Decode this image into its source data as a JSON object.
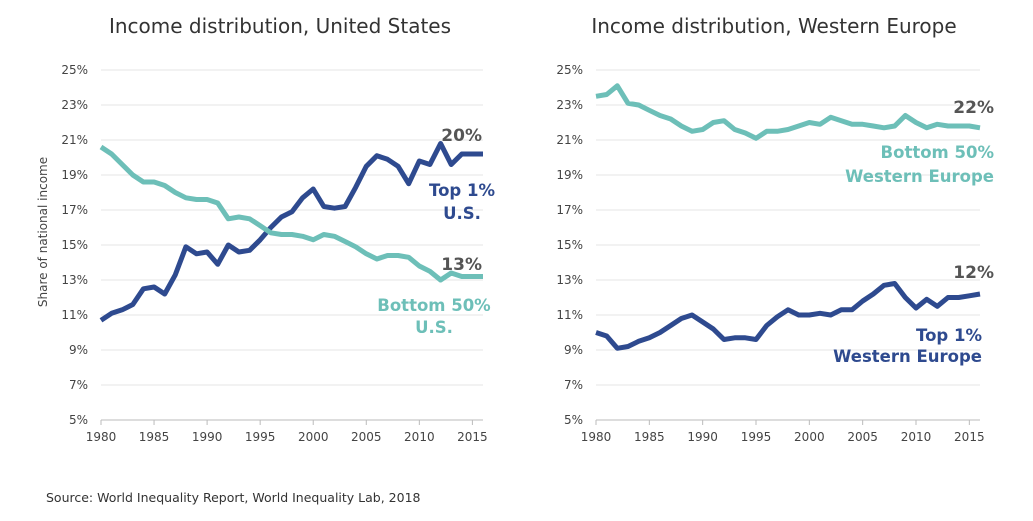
{
  "source": "Source: World Inequality Report, World Inequality Lab, 2018",
  "colors": {
    "top1": "#2e4a8f",
    "bottom50": "#6dbfb8"
  },
  "chart_data": [
    {
      "type": "line",
      "title": "Income distribution, United States",
      "ylabel": "Share of national income",
      "xlabel": "",
      "xlim": [
        1980,
        2016
      ],
      "ylim": [
        5,
        25
      ],
      "xticks": [
        "1980",
        "1985",
        "1990",
        "1995",
        "2000",
        "2005",
        "2010",
        "2015"
      ],
      "yticks": [
        "5%",
        "7%",
        "9%",
        "11%",
        "13%",
        "15%",
        "17%",
        "19%",
        "21%",
        "23%",
        "25%"
      ],
      "x": [
        1980,
        1981,
        1982,
        1983,
        1984,
        1985,
        1986,
        1987,
        1988,
        1989,
        1990,
        1991,
        1992,
        1993,
        1994,
        1995,
        1996,
        1997,
        1998,
        1999,
        2000,
        2001,
        2002,
        2003,
        2004,
        2005,
        2006,
        2007,
        2008,
        2009,
        2010,
        2011,
        2012,
        2013,
        2014,
        2015,
        2016
      ],
      "series": [
        {
          "name": "Top 1%",
          "key": "top1",
          "label_lines": [
            "Top 1%",
            "U.S."
          ],
          "end_label": "20%",
          "values": [
            10.7,
            11.1,
            11.3,
            11.6,
            12.5,
            12.6,
            12.2,
            13.3,
            14.9,
            14.5,
            14.6,
            13.9,
            15.0,
            14.6,
            14.7,
            15.3,
            16.0,
            16.6,
            16.9,
            17.7,
            18.2,
            17.2,
            17.1,
            17.2,
            18.3,
            19.5,
            20.1,
            19.9,
            19.5,
            18.5,
            19.8,
            19.6,
            20.8,
            19.6,
            20.2,
            20.2,
            20.2
          ]
        },
        {
          "name": "Bottom 50%",
          "key": "bottom50",
          "label_lines": [
            "Bottom 50%",
            "U.S."
          ],
          "end_label": "13%",
          "values": [
            20.6,
            20.2,
            19.6,
            19.0,
            18.6,
            18.6,
            18.4,
            18.0,
            17.7,
            17.6,
            17.6,
            17.4,
            16.5,
            16.6,
            16.5,
            16.1,
            15.7,
            15.6,
            15.6,
            15.5,
            15.3,
            15.6,
            15.5,
            15.2,
            14.9,
            14.5,
            14.2,
            14.4,
            14.4,
            14.3,
            13.8,
            13.5,
            13.0,
            13.4,
            13.2,
            13.2,
            13.2
          ]
        }
      ]
    },
    {
      "type": "line",
      "title": "Income distribution, Western Europe",
      "ylabel": "",
      "xlabel": "",
      "xlim": [
        1980,
        2016
      ],
      "ylim": [
        5,
        25
      ],
      "xticks": [
        "1980",
        "1985",
        "1990",
        "1995",
        "2000",
        "2005",
        "2010",
        "2015"
      ],
      "yticks": [
        "5%",
        "7%",
        "9%",
        "11%",
        "13%",
        "15%",
        "17%",
        "19%",
        "21%",
        "23%",
        "25%"
      ],
      "x": [
        1980,
        1981,
        1982,
        1983,
        1984,
        1985,
        1986,
        1987,
        1988,
        1989,
        1990,
        1991,
        1992,
        1993,
        1994,
        1995,
        1996,
        1997,
        1998,
        1999,
        2000,
        2001,
        2002,
        2003,
        2004,
        2005,
        2006,
        2007,
        2008,
        2009,
        2010,
        2011,
        2012,
        2013,
        2014,
        2015,
        2016
      ],
      "series": [
        {
          "name": "Bottom 50%",
          "key": "bottom50",
          "label_lines": [
            "Bottom 50%",
            "Western Europe"
          ],
          "end_label": "22%",
          "values": [
            23.5,
            23.6,
            24.1,
            23.1,
            23.0,
            22.7,
            22.4,
            22.2,
            21.8,
            21.5,
            21.6,
            22.0,
            22.1,
            21.6,
            21.4,
            21.1,
            21.5,
            21.5,
            21.6,
            21.8,
            22.0,
            21.9,
            22.3,
            22.1,
            21.9,
            21.9,
            21.8,
            21.7,
            21.8,
            22.4,
            22.0,
            21.7,
            21.9,
            21.8,
            21.8,
            21.8,
            21.7
          ]
        },
        {
          "name": "Top 1%",
          "key": "top1",
          "label_lines": [
            "Top 1%",
            "Western Europe"
          ],
          "end_label": "12%",
          "values": [
            10.0,
            9.8,
            9.1,
            9.2,
            9.5,
            9.7,
            10.0,
            10.4,
            10.8,
            11.0,
            10.6,
            10.2,
            9.6,
            9.7,
            9.7,
            9.6,
            10.4,
            10.9,
            11.3,
            11.0,
            11.0,
            11.1,
            11.0,
            11.3,
            11.3,
            11.8,
            12.2,
            12.7,
            12.8,
            12.0,
            11.4,
            11.9,
            11.5,
            12.0,
            12.0,
            12.1,
            12.2
          ]
        }
      ]
    }
  ]
}
